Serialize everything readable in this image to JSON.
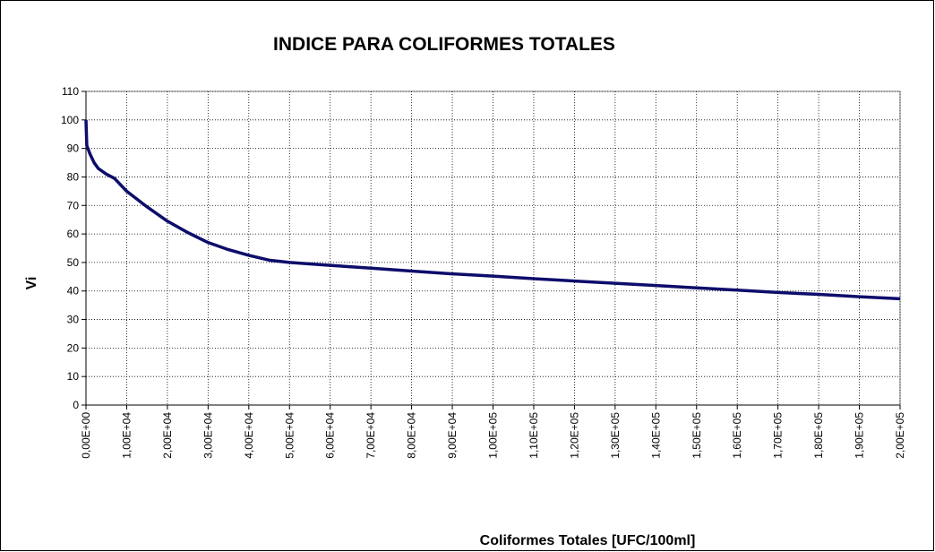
{
  "chart_data": {
    "type": "line",
    "title": "INDICE PARA COLIFORMES TOTALES",
    "xlabel": "Coliformes Totales [UFC/100ml]",
    "ylabel": "Vi",
    "x": [
      0,
      200,
      1000,
      2000,
      3000,
      5000,
      7000,
      10000,
      15000,
      20000,
      25000,
      30000,
      35000,
      40000,
      45000,
      50000,
      60000,
      70000,
      80000,
      90000,
      100000,
      110000,
      120000,
      130000,
      140000,
      150000,
      160000,
      170000,
      180000,
      190000,
      200000
    ],
    "values": [
      100,
      91,
      88,
      85,
      83,
      81,
      79.5,
      75,
      69.5,
      64.5,
      60.5,
      57,
      54.5,
      52.5,
      50.8,
      50,
      49,
      48,
      47,
      46,
      45.2,
      44.3,
      43.5,
      42.7,
      41.9,
      41.1,
      40.3,
      39.5,
      38.8,
      38,
      37.3
    ],
    "color": "#0d0d6b",
    "xlim": [
      0,
      200000
    ],
    "xticks": [
      {
        "value": 0,
        "label": "0,00E+00"
      },
      {
        "value": 10000,
        "label": "1,00E+04"
      },
      {
        "value": 20000,
        "label": "2,00E+04"
      },
      {
        "value": 30000,
        "label": "3,00E+04"
      },
      {
        "value": 40000,
        "label": "4,00E+04"
      },
      {
        "value": 50000,
        "label": "5,00E+04"
      },
      {
        "value": 60000,
        "label": "6,00E+04"
      },
      {
        "value": 70000,
        "label": "7,00E+04"
      },
      {
        "value": 80000,
        "label": "8,00E+04"
      },
      {
        "value": 90000,
        "label": "9,00E+04"
      },
      {
        "value": 100000,
        "label": "1,00E+05"
      },
      {
        "value": 110000,
        "label": "1,10E+05"
      },
      {
        "value": 120000,
        "label": "1,20E+05"
      },
      {
        "value": 130000,
        "label": "1,30E+05"
      },
      {
        "value": 140000,
        "label": "1,40E+05"
      },
      {
        "value": 150000,
        "label": "1,50E+05"
      },
      {
        "value": 160000,
        "label": "1,60E+05"
      },
      {
        "value": 170000,
        "label": "1,70E+05"
      },
      {
        "value": 180000,
        "label": "1,80E+05"
      },
      {
        "value": 190000,
        "label": "1,90E+05"
      },
      {
        "value": 200000,
        "label": "2,00E+05"
      }
    ],
    "ylim": [
      0,
      110
    ],
    "yticks": [
      0,
      10,
      20,
      30,
      40,
      50,
      60,
      70,
      80,
      90,
      100,
      110
    ],
    "grid": true
  }
}
